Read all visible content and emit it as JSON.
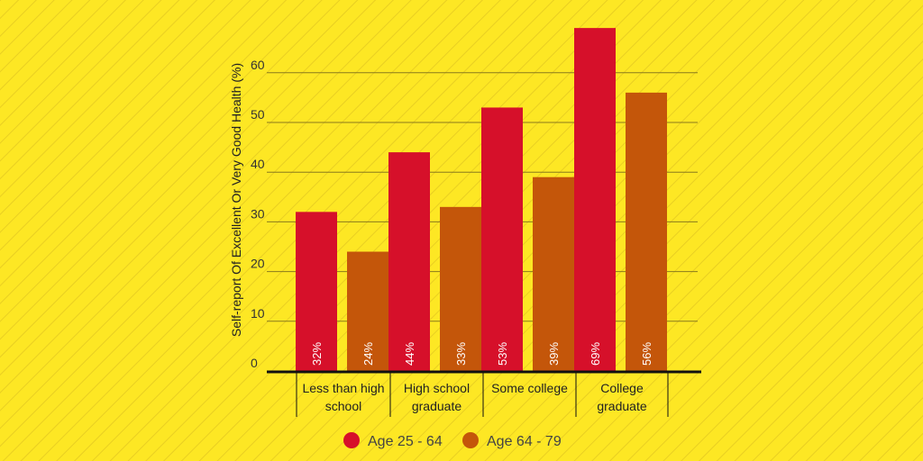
{
  "colors": {
    "background": "#fde724",
    "stripe": "#e9cf22",
    "series_a": "#d6102a",
    "series_b": "#c4560a",
    "grid": "#8a7a1c",
    "axis": "#111111"
  },
  "chart_data": {
    "type": "bar",
    "ylabel": "Self-report Of Excellent Or Very Good Health (%)",
    "xlabel": "",
    "ylim": [
      0,
      70
    ],
    "yticks": [
      0,
      10,
      20,
      30,
      40,
      50,
      60
    ],
    "categories": [
      [
        "Less than high",
        "school"
      ],
      [
        "High school",
        "graduate"
      ],
      [
        "Some college"
      ],
      [
        "College",
        "graduate"
      ]
    ],
    "series": [
      {
        "name": "Age 25 - 64",
        "values": [
          32,
          44,
          53,
          69
        ],
        "labels": [
          "32%",
          "44%",
          "53%",
          "69%"
        ]
      },
      {
        "name": "Age 64 - 79",
        "values": [
          24,
          33,
          39,
          56
        ],
        "labels": [
          "24%",
          "33%",
          "39%",
          "56%"
        ]
      }
    ],
    "legend": {
      "placement": "bottom-center"
    }
  }
}
